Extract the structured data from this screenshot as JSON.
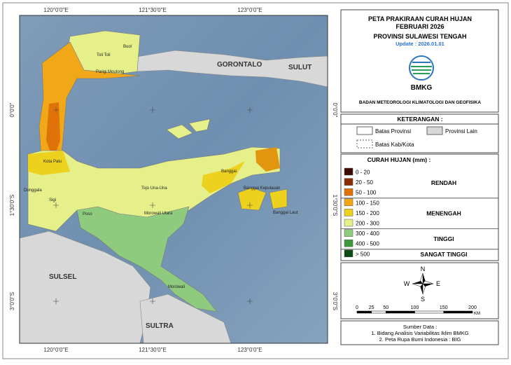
{
  "title": {
    "lines": [
      "PETA PRAKIRAAN CURAH HUJAN",
      "FEBRUARI 2026",
      "PROVINSI SULAWESI TENGAH"
    ],
    "update": "Update : 2026.01.01",
    "org": "BMKG",
    "org_full": "BADAN METEOROLOGI KLIMATOLOGI DAN GEOFISIKA"
  },
  "map": {
    "top_labels": [
      "120°0'0\"E",
      "121°30'0\"E",
      "123°0'0\"E"
    ],
    "bottom_labels": [
      "120°0'0\"E",
      "121°30'0\"E",
      "123°0'0\"E"
    ],
    "left_labels": [
      "0°0'0\"",
      "1°30'0\"S",
      "3°0'0\"S"
    ],
    "right_labels": [
      "0°0'0\"",
      "1°30'0\"S",
      "3°0'0\"S"
    ],
    "province_labels": [
      "GORONTALO",
      "SULUT",
      "SULSEL",
      "SULTRA"
    ],
    "regency_labels": [
      "Toli Toli",
      "Buol",
      "Parigi Moutong",
      "Kota Palu",
      "Donggala",
      "Sigi",
      "Poso",
      "Tojo Una-Una",
      "Morowali Utara",
      "Banggai",
      "Banggai Kepulauan",
      "Banggai Laut",
      "Morowali"
    ]
  },
  "boundary_legend": {
    "title": "KETERANGAN :",
    "items": [
      "Batas Provinsi",
      "Provinsi Lain",
      "Batas Kab/Kota"
    ]
  },
  "rainfall_legend": {
    "title": "CURAH HUJAN (mm) :",
    "classes": [
      {
        "label": "0 - 20",
        "color": "#3a0c02"
      },
      {
        "label": "20 - 50",
        "color": "#8a2c08"
      },
      {
        "label": "50 - 100",
        "color": "#e0720a"
      },
      {
        "label": "100 - 150",
        "color": "#f0a818"
      },
      {
        "label": "150 - 200",
        "color": "#ecd21e"
      },
      {
        "label": "200 - 300",
        "color": "#e6f08a"
      },
      {
        "label": "300 - 400",
        "color": "#8ecb7e"
      },
      {
        "label": "400 - 500",
        "color": "#3c9a3c"
      },
      {
        "label": "> 500",
        "color": "#0c4a12"
      }
    ],
    "categories": [
      "RENDAH",
      "MENENGAH",
      "TINGGI",
      "SANGAT TINGGI"
    ]
  },
  "compass": {
    "n": "N",
    "s": "S",
    "e": "E",
    "w": "W"
  },
  "scale": {
    "ticks": [
      0,
      25,
      50,
      100,
      150,
      200
    ],
    "unit": "KM"
  },
  "source": {
    "title": "Sumber Data :",
    "items": [
      "1. Bidang Analisis Variabilitas Iklim BMKG",
      "2. Peta Rupa Bumi Indonesia : BIG"
    ]
  }
}
